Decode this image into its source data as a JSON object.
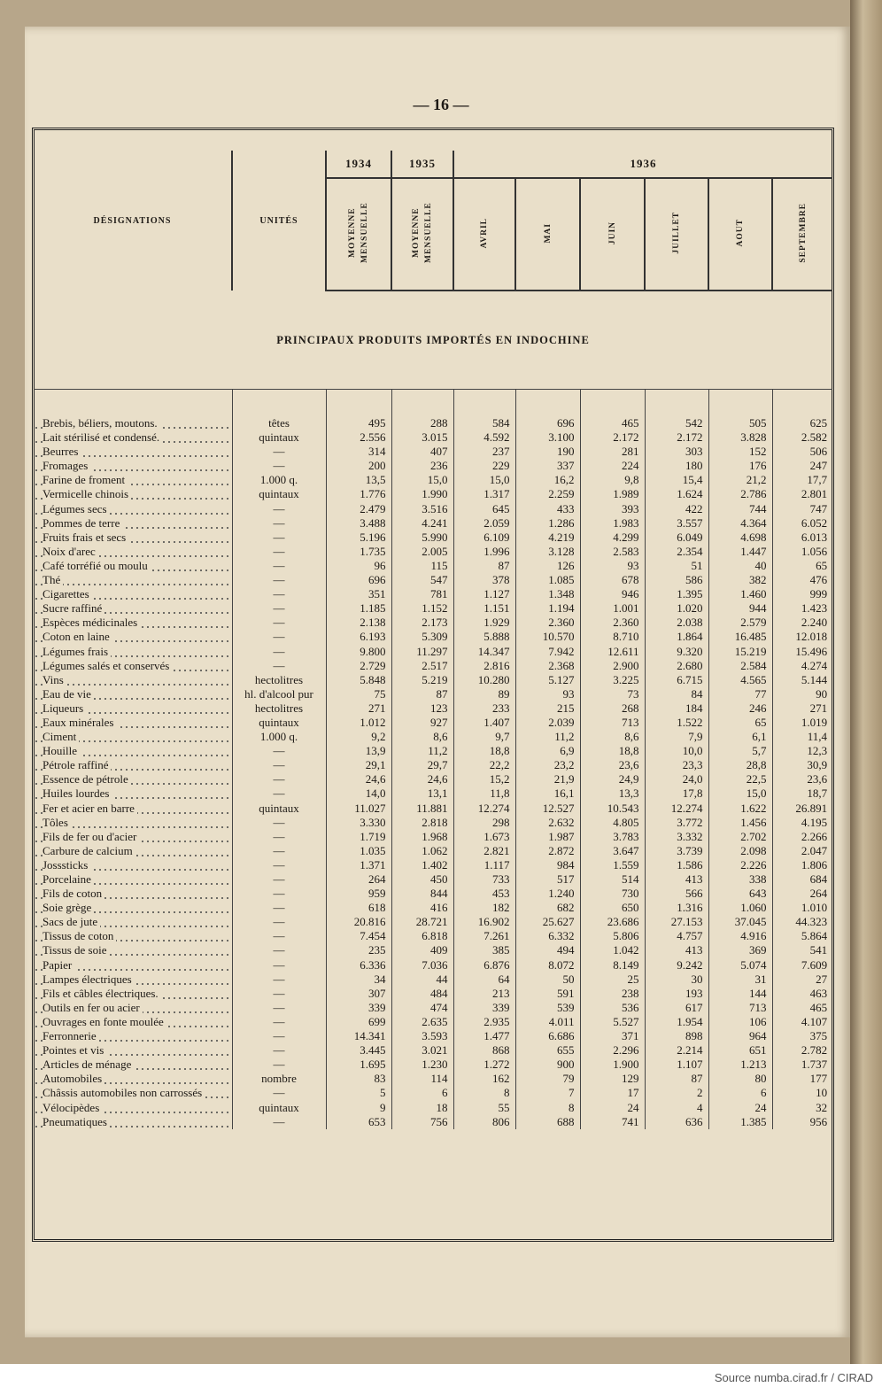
{
  "page_number": "— 16 —",
  "header": {
    "designations": "DÉSIGNATIONS",
    "units": "UNITÉS",
    "years": [
      "1934",
      "1935",
      "1936"
    ],
    "columns": [
      "MOYENNE MENSUELLE",
      "MOYENNE MENSUELLE",
      "AVRIL",
      "MAI",
      "JUIN",
      "JUILLET",
      "AOUT",
      "SEPTEMBRE"
    ]
  },
  "section_title": "PRINCIPAUX PRODUITS IMPORTÉS EN INDOCHINE",
  "table": {
    "rows": [
      [
        "Brebis, béliers, moutons.",
        "têtes",
        "495",
        "288",
        "584",
        "696",
        "465",
        "542",
        "505",
        "625"
      ],
      [
        "Lait stérilisé et condensé.",
        "quintaux",
        "2.556",
        "3.015",
        "4.592",
        "3.100",
        "2.172",
        "2.172",
        "3.828",
        "2.582"
      ],
      [
        "Beurres",
        "—",
        "314",
        "407",
        "237",
        "190",
        "281",
        "303",
        "152",
        "506"
      ],
      [
        "Fromages",
        "—",
        "200",
        "236",
        "229",
        "337",
        "224",
        "180",
        "176",
        "247"
      ],
      [
        "Farine de froment",
        "1.000 q.",
        "13,5",
        "15,0",
        "15,0",
        "16,2",
        "9,8",
        "15,4",
        "21,2",
        "17,7"
      ],
      [
        "Vermicelle chinois",
        "quintaux",
        "1.776",
        "1.990",
        "1.317",
        "2.259",
        "1.989",
        "1.624",
        "2.786",
        "2.801"
      ],
      [
        "Légumes secs",
        "—",
        "2.479",
        "3.516",
        "645",
        "433",
        "393",
        "422",
        "744",
        "747"
      ],
      [
        "Pommes de terre",
        "—",
        "3.488",
        "4.241",
        "2.059",
        "1.286",
        "1.983",
        "3.557",
        "4.364",
        "6.052"
      ],
      [
        "Fruits frais et secs",
        "—",
        "5.196",
        "5.990",
        "6.109",
        "4.219",
        "4.299",
        "6.049",
        "4.698",
        "6.013"
      ],
      [
        "Noix d'arec",
        "—",
        "1.735",
        "2.005",
        "1.996",
        "3.128",
        "2.583",
        "2.354",
        "1.447",
        "1.056"
      ],
      [
        "Café torréfié ou moulu",
        "—",
        "96",
        "115",
        "87",
        "126",
        "93",
        "51",
        "40",
        "65"
      ],
      [
        "Thé",
        "—",
        "696",
        "547",
        "378",
        "1.085",
        "678",
        "586",
        "382",
        "476"
      ],
      [
        "Cigarettes",
        "—",
        "351",
        "781",
        "1.127",
        "1.348",
        "946",
        "1.395",
        "1.460",
        "999"
      ],
      [
        "Sucre raffiné",
        "—",
        "1.185",
        "1.152",
        "1.151",
        "1.194",
        "1.001",
        "1.020",
        "944",
        "1.423"
      ],
      [
        "Espèces médicinales",
        "—",
        "2.138",
        "2.173",
        "1.929",
        "2.360",
        "2.360",
        "2.038",
        "2.579",
        "2.240"
      ],
      [
        "Coton en laine",
        "—",
        "6.193",
        "5.309",
        "5.888",
        "10.570",
        "8.710",
        "1.864",
        "16.485",
        "12.018"
      ],
      [
        "Légumes frais",
        "—",
        "9.800",
        "11.297",
        "14.347",
        "7.942",
        "12.611",
        "9.320",
        "15.219",
        "15.496"
      ],
      [
        "Légumes salés et conservés",
        "—",
        "2.729",
        "2.517",
        "2.816",
        "2.368",
        "2.900",
        "2.680",
        "2.584",
        "4.274"
      ],
      [
        "Vins",
        "hectolitres",
        "5.848",
        "5.219",
        "10.280",
        "5.127",
        "3.225",
        "6.715",
        "4.565",
        "5.144"
      ],
      [
        "Eau de vie",
        "hl. d'alcool pur",
        "75",
        "87",
        "89",
        "93",
        "73",
        "84",
        "77",
        "90"
      ],
      [
        "Liqueurs",
        "hectolitres",
        "271",
        "123",
        "233",
        "215",
        "268",
        "184",
        "246",
        "271"
      ],
      [
        "Eaux minérales",
        "quintaux",
        "1.012",
        "927",
        "1.407",
        "2.039",
        "713",
        "1.522",
        "65",
        "1.019"
      ],
      [
        "Ciment",
        "1.000 q.",
        "9,2",
        "8,6",
        "9,7",
        "11,2",
        "8,6",
        "7,9",
        "6,1",
        "11,4"
      ],
      [
        "Houille",
        "—",
        "13,9",
        "11,2",
        "18,8",
        "6,9",
        "18,8",
        "10,0",
        "5,7",
        "12,3"
      ],
      [
        "Pétrole raffiné",
        "—",
        "29,1",
        "29,7",
        "22,2",
        "23,2",
        "23,6",
        "23,3",
        "28,8",
        "30,9"
      ],
      [
        "Essence de pétrole",
        "—",
        "24,6",
        "24,6",
        "15,2",
        "21,9",
        "24,9",
        "24,0",
        "22,5",
        "23,6"
      ],
      [
        "Huiles lourdes",
        "—",
        "14,0",
        "13,1",
        "11,8",
        "16,1",
        "13,3",
        "17,8",
        "15,0",
        "18,7"
      ],
      [
        "Fer et acier en barre",
        "quintaux",
        "11.027",
        "11.881",
        "12.274",
        "12.527",
        "10.543",
        "12.274",
        "1.622",
        "26.891"
      ],
      [
        "Tôles",
        "—",
        "3.330",
        "2.818",
        "298",
        "2.632",
        "4.805",
        "3.772",
        "1.456",
        "4.195"
      ],
      [
        "Fils de fer ou d'acier",
        "—",
        "1.719",
        "1.968",
        "1.673",
        "1.987",
        "3.783",
        "3.332",
        "2.702",
        "2.266"
      ],
      [
        "Carbure de calcium",
        "—",
        "1.035",
        "1.062",
        "2.821",
        "2.872",
        "3.647",
        "3.739",
        "2.098",
        "2.047"
      ],
      [
        "Josssticks",
        "—",
        "1.371",
        "1.402",
        "1.117",
        "984",
        "1.559",
        "1.586",
        "2.226",
        "1.806"
      ],
      [
        "Porcelaine",
        "—",
        "264",
        "450",
        "733",
        "517",
        "514",
        "413",
        "338",
        "684"
      ],
      [
        "Fils de coton",
        "—",
        "959",
        "844",
        "453",
        "1.240",
        "730",
        "566",
        "643",
        "264"
      ],
      [
        "Soie grège",
        "—",
        "618",
        "416",
        "182",
        "682",
        "650",
        "1.316",
        "1.060",
        "1.010"
      ],
      [
        "Sacs de jute",
        "—",
        "20.816",
        "28.721",
        "16.902",
        "25.627",
        "23.686",
        "27.153",
        "37.045",
        "44.323"
      ],
      [
        "Tissus de coton",
        "—",
        "7.454",
        "6.818",
        "7.261",
        "6.332",
        "5.806",
        "4.757",
        "4.916",
        "5.864"
      ],
      [
        "Tissus de soie",
        "—",
        "235",
        "409",
        "385",
        "494",
        "1.042",
        "413",
        "369",
        "541"
      ],
      [
        "Papier",
        "—",
        "6.336",
        "7.036",
        "6.876",
        "8.072",
        "8.149",
        "9.242",
        "5.074",
        "7.609"
      ],
      [
        "Lampes électriques",
        "—",
        "34",
        "44",
        "64",
        "50",
        "25",
        "30",
        "31",
        "27"
      ],
      [
        "Fils et câbles électriques.",
        "—",
        "307",
        "484",
        "213",
        "591",
        "238",
        "193",
        "144",
        "463"
      ],
      [
        "Outils en fer ou acier",
        "—",
        "339",
        "474",
        "339",
        "539",
        "536",
        "617",
        "713",
        "465"
      ],
      [
        "Ouvrages en fonte moulée",
        "—",
        "699",
        "2.635",
        "2.935",
        "4.011",
        "5.527",
        "1.954",
        "106",
        "4.107"
      ],
      [
        "Ferronnerie",
        "—",
        "14.341",
        "3.593",
        "1.477",
        "6.686",
        "371",
        "898",
        "964",
        "375"
      ],
      [
        "Pointes et vis",
        "—",
        "3.445",
        "3.021",
        "868",
        "655",
        "2.296",
        "2.214",
        "651",
        "2.782"
      ],
      [
        "Articles de ménage",
        "—",
        "1.695",
        "1.230",
        "1.272",
        "900",
        "1.900",
        "1.107",
        "1.213",
        "1.737"
      ],
      [
        "Automobiles",
        "nombre",
        "83",
        "114",
        "162",
        "79",
        "129",
        "87",
        "80",
        "177"
      ],
      [
        "Châssis automobiles non carrossés",
        "—",
        "5",
        "6",
        "8",
        "7",
        "17",
        "2",
        "6",
        "10"
      ],
      [
        "Vélocipèdes",
        "quintaux",
        "9",
        "18",
        "55",
        "8",
        "24",
        "4",
        "24",
        "32"
      ],
      [
        "Pneumatiques",
        "—",
        "653",
        "756",
        "806",
        "688",
        "741",
        "636",
        "1.385",
        "956"
      ]
    ]
  },
  "source": "Source numba.cirad.fr / CIRAD"
}
